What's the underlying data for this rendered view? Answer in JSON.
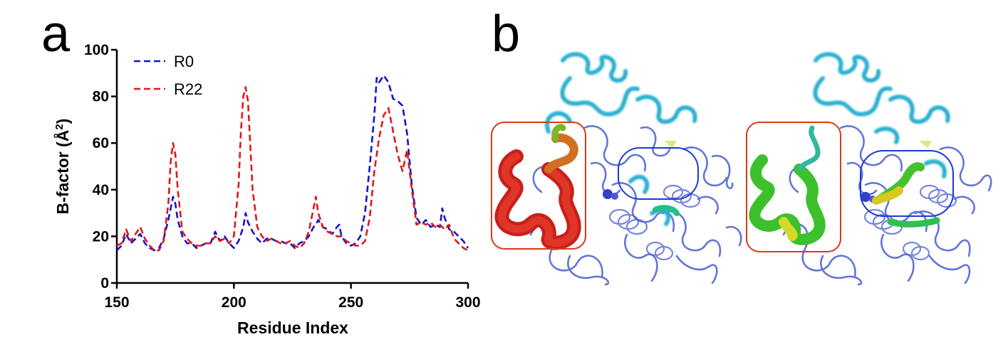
{
  "panels": {
    "a": "a",
    "b": "b"
  },
  "chart_data": {
    "type": "line",
    "title": "",
    "xlabel": "Residue Index",
    "ylabel": "B-factor (Å",
    "ylabel_sup": "2",
    "ylabel_close": ")",
    "xlim": [
      150,
      300
    ],
    "ylim": [
      0,
      100
    ],
    "xticks": [
      150,
      200,
      250,
      300
    ],
    "yticks": [
      0,
      20,
      40,
      60,
      80,
      100
    ],
    "grid": false,
    "legend_position": "top-left",
    "colors": {
      "R0": "#1515cc",
      "R22": "#e01818"
    },
    "series": [
      {
        "name": "R0",
        "color": "#1515cc",
        "x": [
          150,
          152,
          154,
          156,
          158,
          160,
          162,
          164,
          166,
          168,
          170,
          172,
          174,
          175,
          176,
          178,
          180,
          182,
          184,
          186,
          188,
          190,
          192,
          194,
          196,
          198,
          200,
          202,
          204,
          205,
          206,
          208,
          210,
          212,
          214,
          216,
          218,
          220,
          222,
          224,
          226,
          228,
          230,
          232,
          234,
          235,
          236,
          238,
          240,
          242,
          244,
          245,
          246,
          248,
          250,
          252,
          254,
          256,
          258,
          260,
          261,
          262,
          264,
          266,
          268,
          270,
          272,
          274,
          276,
          278,
          280,
          282,
          284,
          286,
          288,
          289,
          290,
          292,
          294,
          296,
          298,
          300
        ],
        "y": [
          14,
          16,
          21,
          17,
          19,
          21,
          17,
          15,
          14,
          15,
          19,
          27,
          37,
          34,
          27,
          20,
          17,
          17,
          15,
          16,
          17,
          17,
          22,
          18,
          20,
          17,
          15,
          18,
          24,
          30,
          26,
          22,
          19,
          17,
          19,
          19,
          18,
          18,
          17,
          17,
          15,
          17,
          18,
          20,
          24,
          25,
          27,
          24,
          23,
          21,
          24,
          25,
          20,
          17,
          16,
          17,
          20,
          30,
          50,
          72,
          88,
          86,
          89,
          86,
          79,
          78,
          76,
          64,
          42,
          28,
          25,
          27,
          24,
          25,
          24,
          32,
          28,
          23,
          22,
          20,
          18,
          15
        ]
      },
      {
        "name": "R22",
        "color": "#e01818",
        "x": [
          150,
          152,
          154,
          156,
          158,
          160,
          162,
          164,
          166,
          168,
          170,
          172,
          173,
          174,
          175,
          176,
          178,
          180,
          182,
          184,
          186,
          188,
          190,
          192,
          194,
          196,
          198,
          200,
          202,
          203,
          204,
          205,
          206,
          208,
          210,
          212,
          214,
          216,
          218,
          220,
          222,
          224,
          226,
          228,
          230,
          232,
          234,
          235,
          236,
          238,
          240,
          242,
          244,
          246,
          248,
          250,
          252,
          254,
          256,
          258,
          260,
          262,
          264,
          266,
          268,
          270,
          272,
          274,
          276,
          278,
          280,
          282,
          284,
          286,
          288,
          290,
          292,
          294,
          296,
          298,
          300
        ],
        "y": [
          16,
          17,
          23,
          18,
          21,
          24,
          19,
          16,
          14,
          14,
          18,
          34,
          52,
          60,
          55,
          40,
          22,
          19,
          17,
          16,
          16,
          17,
          17,
          20,
          18,
          19,
          17,
          20,
          42,
          65,
          80,
          84,
          78,
          40,
          24,
          20,
          18,
          19,
          18,
          17,
          17,
          18,
          16,
          15,
          17,
          22,
          32,
          37,
          30,
          24,
          22,
          21,
          20,
          20,
          18,
          17,
          16,
          16,
          18,
          28,
          48,
          62,
          72,
          75,
          65,
          55,
          48,
          57,
          40,
          25,
          26,
          25,
          26,
          24,
          25,
          23,
          25,
          19,
          17,
          15,
          14
        ]
      }
    ]
  }
}
